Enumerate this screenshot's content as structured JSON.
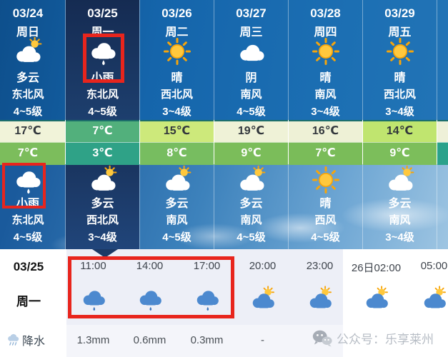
{
  "colors": {
    "highlight_box": "#e8251d",
    "selected_day_bg": "#152b52",
    "day_bg": "#1565ab",
    "night_sky": "#6fa7d4",
    "temp_border": "#1c6f6a",
    "panel_bg": "#edeff7",
    "panel_bg_lower": "#f4f5fa",
    "watermark": "#b7bdc5",
    "pointer": "#1c3a66"
  },
  "week": {
    "columns": [
      {
        "date": "03/24",
        "weekday": "周日",
        "day": {
          "icon": "cloud-sun",
          "condition": "多云",
          "wind_dir": "东北风",
          "wind_level": "4~5级"
        },
        "high_temp": "17℃",
        "high_bg": "#f1f3d9",
        "high_fg": "#32373c",
        "low_temp": "7℃",
        "low_bg": "#7cbd5c",
        "low_fg": "#ffffff",
        "night": {
          "icon": "cloud-rain",
          "condition": "小雨",
          "wind_dir": "东北风",
          "wind_level": "4~5级"
        },
        "night_highlighted": true,
        "selected": false
      },
      {
        "date": "03/25",
        "weekday": "周一",
        "day": {
          "icon": "cloud-rain",
          "condition": "小雨",
          "wind_dir": "东北风",
          "wind_level": "4~5级"
        },
        "high_temp": "7℃",
        "high_bg": "#52b07c",
        "high_fg": "#ffffff",
        "low_temp": "3℃",
        "low_bg": "#2fa287",
        "low_fg": "#ffffff",
        "night": {
          "icon": "cloud-sun",
          "condition": "多云",
          "wind_dir": "西北风",
          "wind_level": "3~4级"
        },
        "day_highlighted": true,
        "selected": true
      },
      {
        "date": "03/26",
        "weekday": "周二",
        "day": {
          "icon": "sun",
          "condition": "晴",
          "wind_dir": "西北风",
          "wind_level": "3~4级"
        },
        "high_temp": "15℃",
        "high_bg": "#cde97b",
        "high_fg": "#32373c",
        "low_temp": "8℃",
        "low_bg": "#77bd60",
        "low_fg": "#ffffff",
        "night": {
          "icon": "cloud-sun",
          "condition": "多云",
          "wind_dir": "南风",
          "wind_level": "4~5级"
        },
        "selected": false
      },
      {
        "date": "03/27",
        "weekday": "周三",
        "day": {
          "icon": "cloud",
          "condition": "阴",
          "wind_dir": "南风",
          "wind_level": "4~5级"
        },
        "high_temp": "19℃",
        "high_bg": "#eff2d7",
        "high_fg": "#32373c",
        "low_temp": "9℃",
        "low_bg": "#7bbd5a",
        "low_fg": "#ffffff",
        "night": {
          "icon": "cloud-sun",
          "condition": "多云",
          "wind_dir": "南风",
          "wind_level": "4~5级"
        },
        "selected": false
      },
      {
        "date": "03/28",
        "weekday": "周四",
        "day": {
          "icon": "sun",
          "condition": "晴",
          "wind_dir": "南风",
          "wind_level": "3~4级"
        },
        "high_temp": "16℃",
        "high_bg": "#eef1d6",
        "high_fg": "#32373c",
        "low_temp": "7℃",
        "low_bg": "#7abc59",
        "low_fg": "#ffffff",
        "night": {
          "icon": "sun",
          "condition": "晴",
          "wind_dir": "西风",
          "wind_level": "4~5级"
        },
        "selected": false
      },
      {
        "date": "03/29",
        "weekday": "周五",
        "day": {
          "icon": "sun",
          "condition": "晴",
          "wind_dir": "西北风",
          "wind_level": "3~4级"
        },
        "high_temp": "14℃",
        "high_bg": "#c0e56f",
        "high_fg": "#32373c",
        "low_temp": "9℃",
        "low_bg": "#7cbe5b",
        "low_fg": "#ffffff",
        "night": {
          "icon": "cloud-sun",
          "condition": "多云",
          "wind_dir": "南风",
          "wind_level": "3~4级"
        },
        "selected": false
      },
      {
        "date": "",
        "weekday": "",
        "day": {
          "icon": "",
          "condition": "",
          "wind_dir": "",
          "wind_level": ""
        },
        "high_temp": "",
        "high_bg": "#eef0d8",
        "high_fg": "#32373c",
        "low_temp": "",
        "low_bg": "#2aa28b",
        "low_fg": "#ffffff",
        "night": {
          "icon": "",
          "condition": "",
          "wind_dir": "",
          "wind_level": ""
        },
        "selected": false
      }
    ]
  },
  "hourly": {
    "selected_date": "03/25",
    "selected_weekday": "周一",
    "precip_label": "降水",
    "watermark": "公众号：乐享莱州",
    "hours": [
      {
        "time": "11:00",
        "icon": "blue-cloud-rain",
        "precip": "1.3mm"
      },
      {
        "time": "14:00",
        "icon": "blue-cloud-rain",
        "precip": "0.6mm"
      },
      {
        "time": "17:00",
        "icon": "blue-cloud-rain",
        "precip": "0.3mm"
      },
      {
        "time": "20:00",
        "icon": "blue-cloud-sun",
        "precip": "-"
      },
      {
        "time": "23:00",
        "icon": "blue-cloud-sun",
        "precip": ""
      },
      {
        "time": "26日02:00",
        "icon": "blue-cloud-sun",
        "precip": ""
      },
      {
        "time": "05:00",
        "icon": "blue-cloud-sun",
        "precip": ""
      }
    ]
  }
}
